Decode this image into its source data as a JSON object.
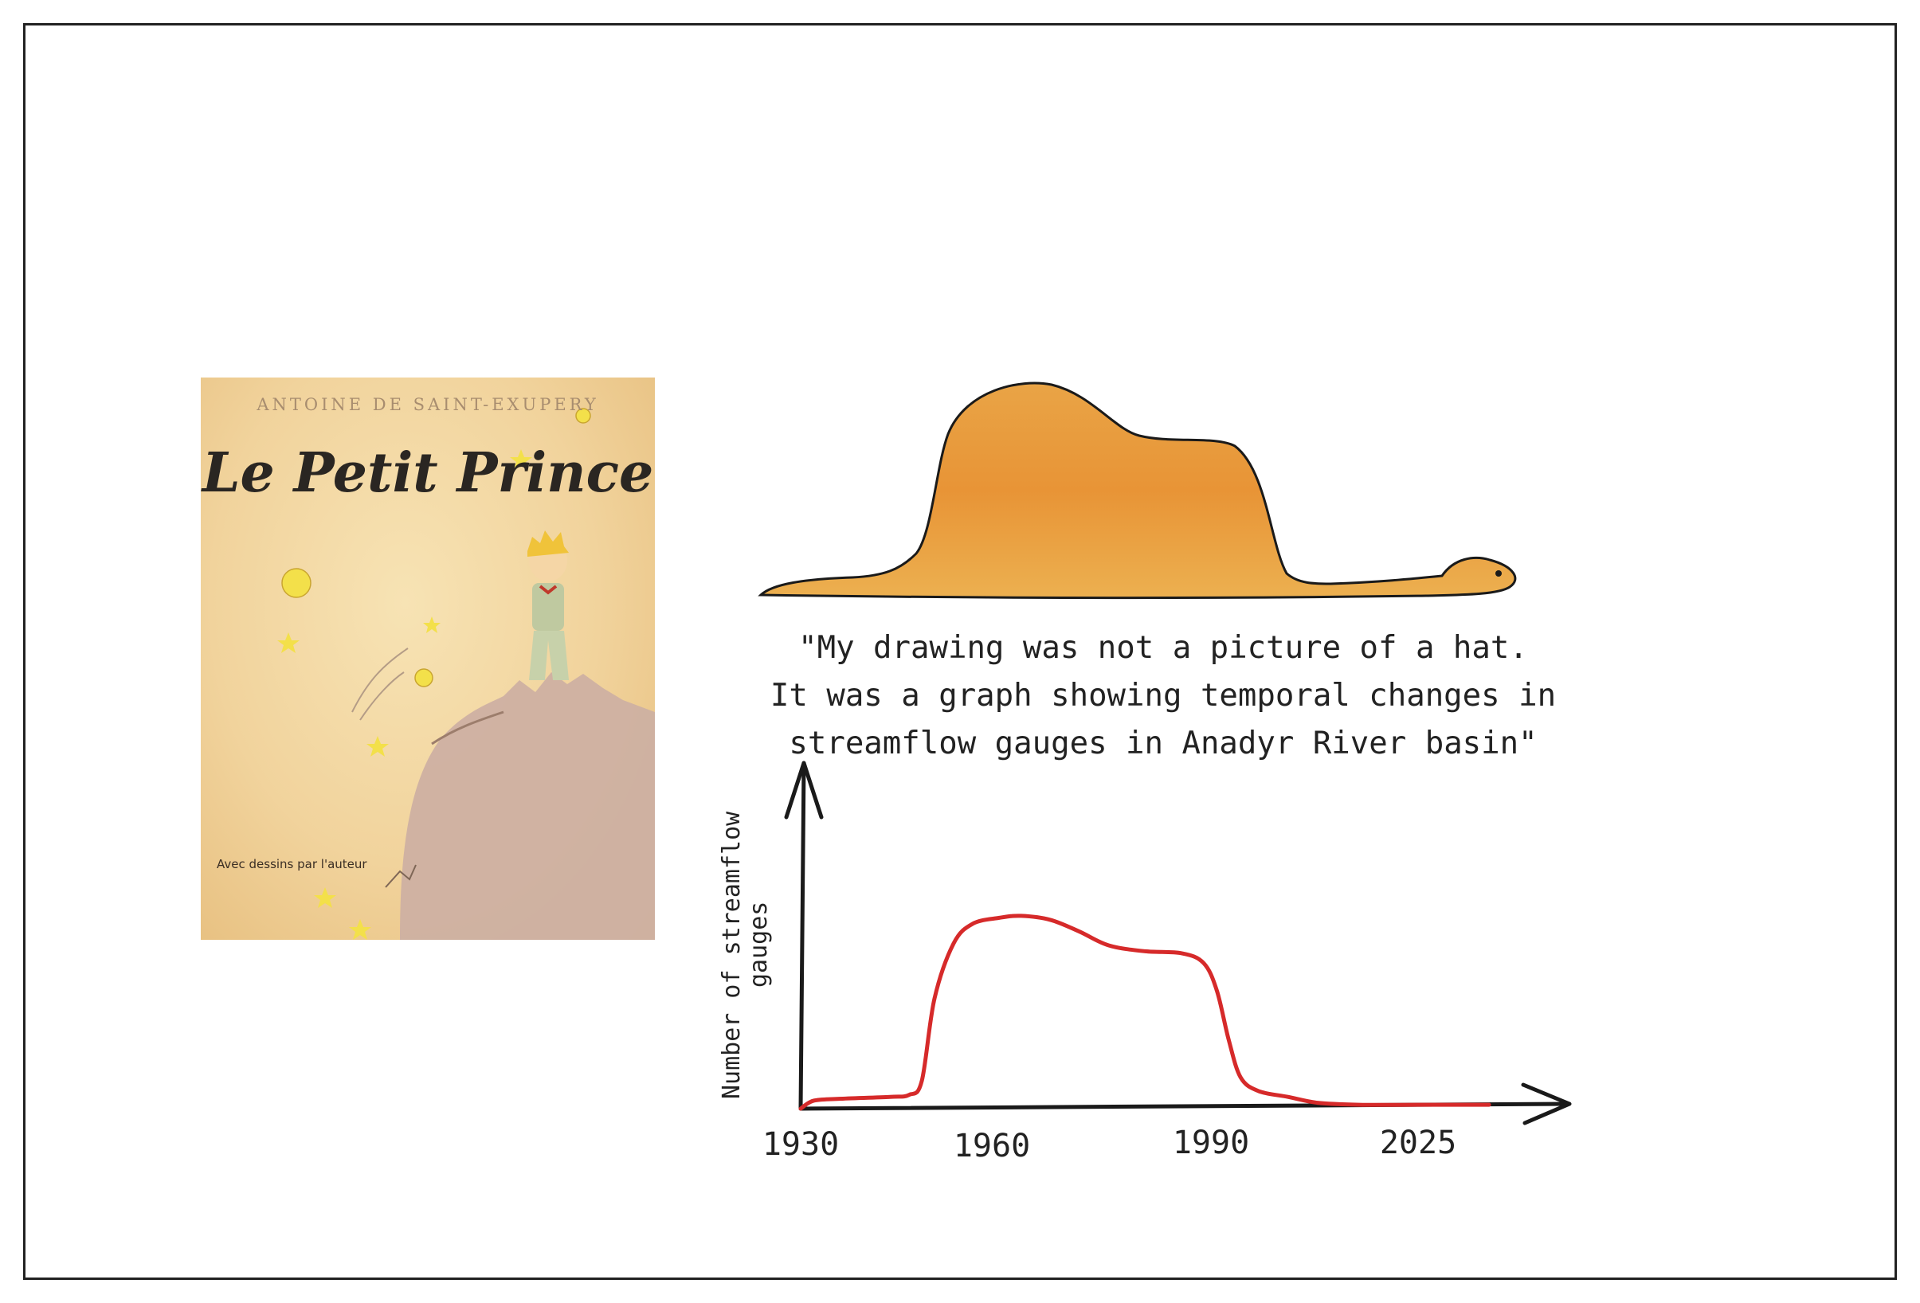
{
  "book": {
    "author": "ANTOINE DE SAINT-EXUPERY",
    "title": "Le Petit Prince",
    "byline": "Avec dessins par l'auteur"
  },
  "quote": {
    "line1": "\"My drawing was not a picture of a hat.",
    "line2": "It was a graph showing temporal changes in",
    "line3": "streamflow gauges in Anadyr River basin\""
  },
  "colors": {
    "line": "#d62a2a",
    "axis": "#1a1a1a",
    "hat": "#e8a84a"
  },
  "chart_data": {
    "type": "line",
    "title": "",
    "xlabel": "",
    "ylabel": "Number of streamflow gauges",
    "x_ticks": [
      "1930",
      "1960",
      "1990",
      "2025"
    ],
    "ylim": [
      0,
      100
    ],
    "grid": false,
    "series": [
      {
        "points": [
          [
            1930,
            0
          ],
          [
            1932,
            4
          ],
          [
            1936,
            5
          ],
          [
            1944,
            6
          ],
          [
            1947,
            7
          ],
          [
            1949,
            14
          ],
          [
            1951,
            56
          ],
          [
            1954,
            84
          ],
          [
            1957,
            94
          ],
          [
            1961,
            97
          ],
          [
            1964,
            98
          ],
          [
            1968,
            96
          ],
          [
            1972,
            90
          ],
          [
            1976,
            83
          ],
          [
            1981,
            80
          ],
          [
            1986,
            79
          ],
          [
            1989,
            74
          ],
          [
            1991,
            60
          ],
          [
            1993,
            35
          ],
          [
            1995,
            16
          ],
          [
            1998,
            9
          ],
          [
            2003,
            6
          ],
          [
            2008,
            3
          ],
          [
            2015,
            2
          ],
          [
            2025,
            2
          ],
          [
            2037,
            2
          ]
        ]
      }
    ]
  }
}
